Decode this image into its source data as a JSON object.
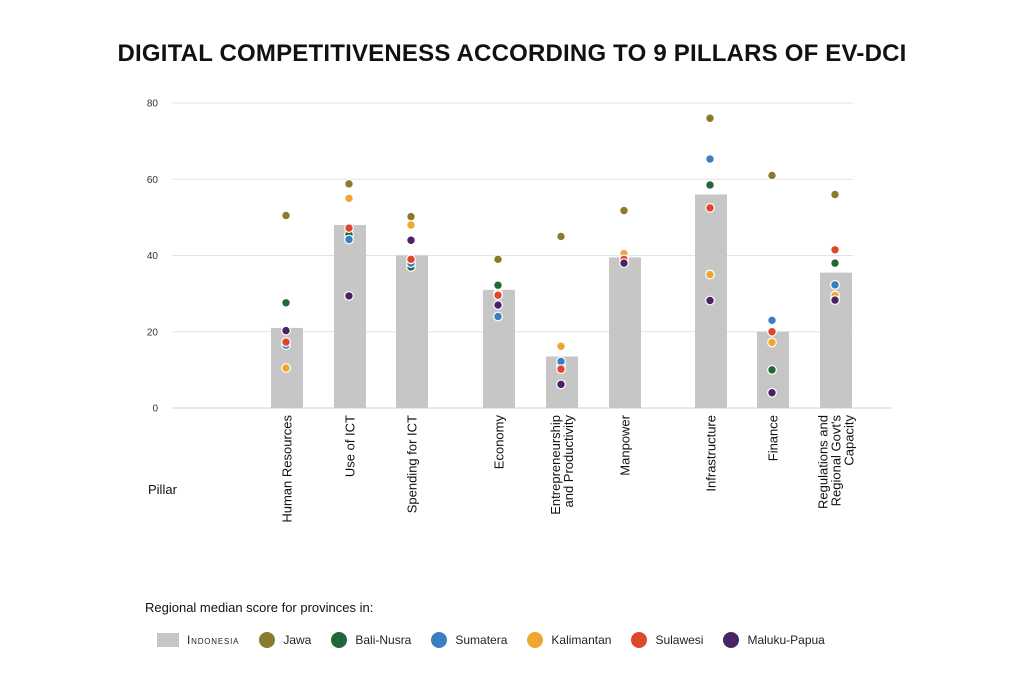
{
  "chart_data": {
    "type": "bar",
    "title": "DIGITAL COMPETITIVENESS ACCORDING TO 9 PILLARS OF EV-DCI",
    "xlabel": "Pillar",
    "ylabel": "",
    "ylim": [
      0,
      80
    ],
    "yticks": [
      0,
      20,
      40,
      60,
      80
    ],
    "grid": true,
    "legend_position": "bottom",
    "legend_title": "Regional median score for provinces in:",
    "categories": [
      "Human Resources",
      "Use of ICT",
      "Spending for ICT",
      "Economy",
      "Entrepreneurship and Productivity",
      "Manpower",
      "Infrastructure",
      "Finance",
      "Regulations and Regional Govt's Capacity"
    ],
    "category_lines": [
      [
        "Human Resources"
      ],
      [
        "Use of ICT"
      ],
      [
        "Spending for ICT"
      ],
      [
        "Economy"
      ],
      [
        "Entrepreneurship",
        "and Productivity"
      ],
      [
        "Manpower"
      ],
      [
        "Infrastructure"
      ],
      [
        "Finance"
      ],
      [
        "Regulations and",
        "Regional Govt's",
        "Capacity"
      ]
    ],
    "bar_series": {
      "name": "Indonesia",
      "color": "#c6c6c6",
      "values": [
        21,
        48,
        40,
        31,
        13.5,
        39.5,
        56,
        20,
        35.5
      ]
    },
    "series": [
      {
        "name": "Jawa",
        "color": "#8a7a2c",
        "values": [
          50.5,
          58.8,
          50.2,
          39,
          45,
          51.8,
          76,
          61,
          56
        ]
      },
      {
        "name": "Bali-Nusra",
        "color": "#22663a",
        "values": [
          27.6,
          45.5,
          37,
          32.2,
          11,
          39.5,
          58.5,
          10,
          38
        ]
      },
      {
        "name": "Sumatera",
        "color": "#3a7fc4",
        "values": [
          16.5,
          44.2,
          38,
          24,
          12.2,
          38.2,
          65.3,
          23,
          32.3
        ]
      },
      {
        "name": "Kalimantan",
        "color": "#f0a630",
        "values": [
          10.5,
          55,
          48,
          30,
          16.2,
          40.5,
          35,
          17.2,
          29.5
        ]
      },
      {
        "name": "Sulawesi",
        "color": "#e0462e",
        "values": [
          17.3,
          47.2,
          39,
          29.6,
          10.2,
          39,
          52.5,
          20,
          41.5
        ]
      },
      {
        "name": "Maluku-Papua",
        "color": "#4b2266",
        "values": [
          20.3,
          29.4,
          44,
          27,
          6.2,
          38,
          28.2,
          4,
          28.3
        ]
      }
    ]
  }
}
